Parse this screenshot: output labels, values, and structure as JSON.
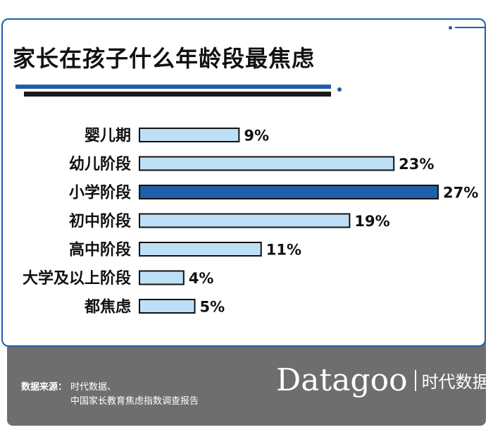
{
  "title": "家长在孩子什么年龄段最焦虑",
  "colors": {
    "accent": "#1f5ea8",
    "bar_fill": "#bde0f7",
    "bar_highlight": "#1f5ea8",
    "bar_stroke": "#111111",
    "panel": "#6e6e6e"
  },
  "chart_data": {
    "type": "bar",
    "orientation": "horizontal",
    "title": "家长在孩子什么年龄段最焦虑",
    "categories": [
      "婴儿期",
      "幼儿阶段",
      "小学阶段",
      "初中阶段",
      "高中阶段",
      "大学及以上阶段",
      "都焦虑"
    ],
    "values": [
      9,
      23,
      27,
      19,
      11,
      4,
      5
    ],
    "value_labels": [
      "9%",
      "23%",
      "27%",
      "19%",
      "11%",
      "4%",
      "5%"
    ],
    "highlight_index": 2,
    "unit": "%",
    "xlim": [
      0,
      27
    ],
    "grid": false
  },
  "footer": {
    "source_label": "数据来源：",
    "source_lines": [
      "时代数据、",
      "中国家长教育焦虑指数调查报告"
    ],
    "brand_name": "Datagoo",
    "brand_cn": "时代数据"
  }
}
